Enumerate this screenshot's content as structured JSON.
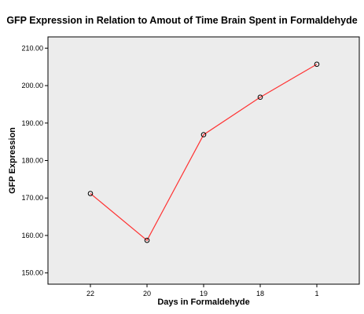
{
  "chart_data": {
    "type": "line",
    "title": "GFP Expression in Relation to Amout of Time Brain Spent in Formaldehyde",
    "xlabel": "Days in Formaldehyde",
    "ylabel": "GFP Expression",
    "categories": [
      "22",
      "20",
      "19",
      "18",
      "1"
    ],
    "series": [
      {
        "values": [
          171.2,
          158.7,
          186.9,
          196.9,
          205.7
        ],
        "color": "#ff3333"
      }
    ],
    "ylim": [
      147.0,
      213.0
    ],
    "yticks": [
      150,
      160,
      170,
      180,
      190,
      200,
      210
    ],
    "ytick_labels": [
      "150.00",
      "160.00",
      "170.00",
      "180.00",
      "190.00",
      "200.00",
      "210.00"
    ],
    "grid": false,
    "legend": "none",
    "plot_background": "#ececec",
    "marker": "open-circle"
  }
}
